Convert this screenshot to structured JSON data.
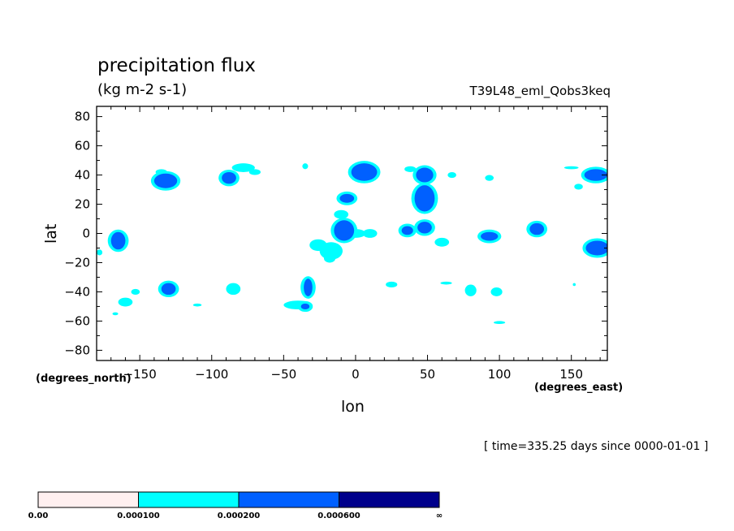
{
  "header": {
    "title": "precipitation flux",
    "units": "(kg m-2 s-1)",
    "run_name": "T39L48_eml_Qobs3keq"
  },
  "footer": {
    "timestamp": "[ time=335.25 days since 0000-01-01 ]"
  },
  "colors": {
    "level0": "#fff0f0",
    "level1": "#00ffff",
    "level2": "#0060ff",
    "level3": "#00008b"
  },
  "chart_data": {
    "type": "heatmap",
    "title": "precipitation flux",
    "subtitle": "(kg m-2 s-1)",
    "xlabel": "lon",
    "ylabel": "lat",
    "x_units": "(degrees_east)",
    "y_units": "(degrees_north)",
    "xlim": [
      -180,
      175
    ],
    "ylim": [
      -87,
      87
    ],
    "x_ticks": [
      -150,
      -100,
      -50,
      0,
      50,
      100,
      150
    ],
    "y_ticks": [
      -80,
      -60,
      -40,
      -20,
      0,
      20,
      40,
      60,
      80
    ],
    "colorbar": {
      "labels": [
        "0.00",
        "0.000100",
        "0.000200",
        "0.000600",
        "∞"
      ],
      "bins": [
        {
          "min": 0.0,
          "max": 0.0001,
          "color": "#fff0f0"
        },
        {
          "min": 0.0001,
          "max": 0.0002,
          "color": "#00ffff"
        },
        {
          "min": 0.0002,
          "max": 0.0006,
          "color": "#0060ff"
        },
        {
          "min": 0.0006,
          "max": null,
          "color": "#00008b"
        }
      ]
    },
    "blobs": [
      {
        "lon": 6,
        "lat": 42,
        "rlon": 9,
        "rlat": 6,
        "level": 2
      },
      {
        "lon": -132,
        "lat": 36,
        "rlon": 8,
        "rlat": 5,
        "level": 2
      },
      {
        "lon": -88,
        "lat": 38,
        "rlon": 5,
        "rlat": 4,
        "level": 2
      },
      {
        "lon": -78,
        "lat": 45,
        "rlon": 8,
        "rlat": 3,
        "level": 1
      },
      {
        "lon": -135,
        "lat": 42,
        "rlon": 4,
        "rlat": 2,
        "level": 1
      },
      {
        "lon": -70,
        "lat": 42,
        "rlon": 4,
        "rlat": 2,
        "level": 1
      },
      {
        "lon": -165,
        "lat": -5,
        "rlon": 5,
        "rlat": 6,
        "level": 2
      },
      {
        "lon": -178,
        "lat": -13,
        "rlon": 2,
        "rlat": 2,
        "level": 1
      },
      {
        "lon": -8,
        "lat": 2,
        "rlon": 7,
        "rlat": 7,
        "level": 2
      },
      {
        "lon": 0,
        "lat": 0,
        "rlon": 7,
        "rlat": 3,
        "level": 1
      },
      {
        "lon": 10,
        "lat": 0,
        "rlon": 5,
        "rlat": 3,
        "level": 1
      },
      {
        "lon": -10,
        "lat": 13,
        "rlon": 5,
        "rlat": 3,
        "level": 1
      },
      {
        "lon": -6,
        "lat": 24,
        "rlon": 5,
        "rlat": 3,
        "level": 2
      },
      {
        "lon": -17,
        "lat": -12,
        "rlon": 8,
        "rlat": 6,
        "level": 1
      },
      {
        "lon": -26,
        "lat": -8,
        "rlon": 6,
        "rlat": 4,
        "level": 1
      },
      {
        "lon": -18,
        "lat": -17,
        "rlon": 4,
        "rlat": 3,
        "level": 1
      },
      {
        "lon": 48,
        "lat": 40,
        "rlon": 6,
        "rlat": 5,
        "level": 2
      },
      {
        "lon": 38,
        "lat": 44,
        "rlon": 4,
        "rlat": 2,
        "level": 1
      },
      {
        "lon": 48,
        "lat": 24,
        "rlon": 7,
        "rlat": 9,
        "level": 2
      },
      {
        "lon": 36,
        "lat": 2,
        "rlon": 4,
        "rlat": 3,
        "level": 2
      },
      {
        "lon": 48,
        "lat": 4,
        "rlon": 5,
        "rlat": 4,
        "level": 2
      },
      {
        "lon": 60,
        "lat": -6,
        "rlon": 5,
        "rlat": 3,
        "level": 1
      },
      {
        "lon": 93,
        "lat": -2,
        "rlon": 6,
        "rlat": 3,
        "level": 2
      },
      {
        "lon": 126,
        "lat": 3,
        "rlon": 5,
        "rlat": 4,
        "level": 2
      },
      {
        "lon": 168,
        "lat": -10,
        "rlon": 8,
        "rlat": 5,
        "level": 2
      },
      {
        "lon": 167,
        "lat": 40,
        "rlon": 8,
        "rlat": 4,
        "level": 2
      },
      {
        "lon": 150,
        "lat": 45,
        "rlon": 5,
        "rlat": 1,
        "level": 1
      },
      {
        "lon": 155,
        "lat": 32,
        "rlon": 3,
        "rlat": 2,
        "level": 1
      },
      {
        "lon": 93,
        "lat": 38,
        "rlon": 3,
        "rlat": 2,
        "level": 1
      },
      {
        "lon": 67,
        "lat": 40,
        "rlon": 3,
        "rlat": 2,
        "level": 1
      },
      {
        "lon": -130,
        "lat": -38,
        "rlon": 5,
        "rlat": 4,
        "level": 2
      },
      {
        "lon": -160,
        "lat": -47,
        "rlon": 5,
        "rlat": 3,
        "level": 1
      },
      {
        "lon": -153,
        "lat": -40,
        "rlon": 3,
        "rlat": 2,
        "level": 1
      },
      {
        "lon": -85,
        "lat": -38,
        "rlon": 5,
        "rlat": 4,
        "level": 1
      },
      {
        "lon": -33,
        "lat": -37,
        "rlon": 3,
        "rlat": 6,
        "level": 2
      },
      {
        "lon": -40,
        "lat": -49,
        "rlon": 10,
        "rlat": 3,
        "level": 1
      },
      {
        "lon": -35,
        "lat": -50,
        "rlon": 3,
        "rlat": 2,
        "level": 2
      },
      {
        "lon": 25,
        "lat": -35,
        "rlon": 4,
        "rlat": 2,
        "level": 1
      },
      {
        "lon": 63,
        "lat": -34,
        "rlon": 4,
        "rlat": 1,
        "level": 1
      },
      {
        "lon": 80,
        "lat": -39,
        "rlon": 4,
        "rlat": 4,
        "level": 1
      },
      {
        "lon": 98,
        "lat": -40,
        "rlon": 4,
        "rlat": 3,
        "level": 1
      },
      {
        "lon": 100,
        "lat": -61,
        "rlon": 4,
        "rlat": 1,
        "level": 1
      },
      {
        "lon": 152,
        "lat": -35,
        "rlon": 1,
        "rlat": 1,
        "level": 1
      },
      {
        "lon": -35,
        "lat": 46,
        "rlon": 2,
        "rlat": 2,
        "level": 1
      },
      {
        "lon": -167,
        "lat": -55,
        "rlon": 2,
        "rlat": 1,
        "level": 1
      },
      {
        "lon": -110,
        "lat": -49,
        "rlon": 3,
        "rlat": 1,
        "level": 1
      }
    ]
  }
}
